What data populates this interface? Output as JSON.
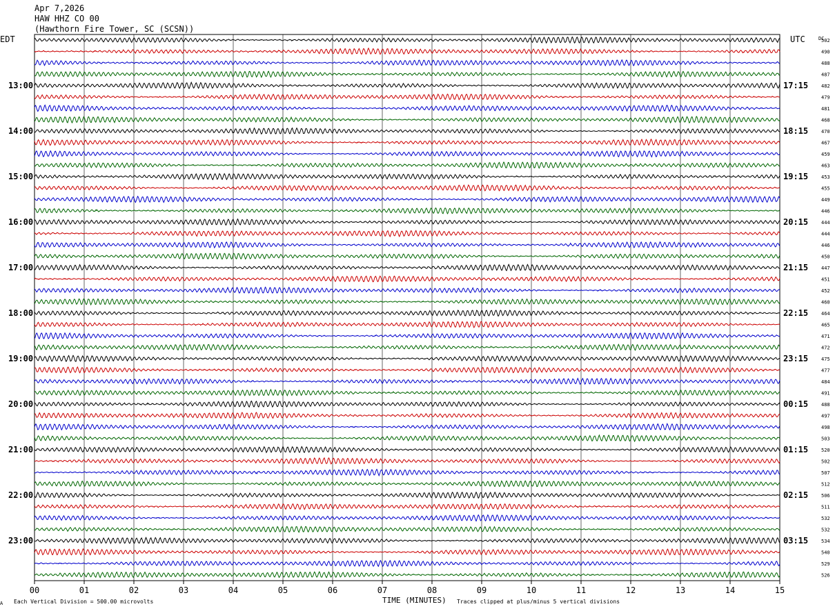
{
  "header": {
    "date": "Apr 7,2026",
    "station": "HAW HHZ CO 00",
    "location": "(Hawthorn Fire Tower, SC (SCSN))"
  },
  "left_label": "EDT",
  "right_label": "UTC",
  "dc_label": "DC",
  "footer": {
    "scale_marker": "A",
    "scale_text": "Each Vertical Division =  500.00 microvolts",
    "xlabel": "TIME (MINUTES)",
    "clip_text": "Traces clipped at plus/minus 5 vertical divisions"
  },
  "colors": {
    "trace_cycle": [
      "#000000",
      "#cc0000",
      "#0000cc",
      "#006600"
    ],
    "grid": "#000000",
    "background": "#ffffff"
  },
  "chart_data": {
    "type": "line",
    "title": "",
    "xlabel": "TIME (MINUTES)",
    "ylabel": "",
    "xlim": [
      0,
      15
    ],
    "x_ticks": [
      "00",
      "01",
      "02",
      "03",
      "04",
      "05",
      "06",
      "07",
      "08",
      "09",
      "10",
      "11",
      "12",
      "13",
      "14",
      "15"
    ],
    "traces_per_hour": 4,
    "trace_count": 48,
    "left_hour_labels": [
      {
        "trace_index": 4,
        "label": "13:00"
      },
      {
        "trace_index": 8,
        "label": "14:00"
      },
      {
        "trace_index": 12,
        "label": "15:00"
      },
      {
        "trace_index": 16,
        "label": "16:00"
      },
      {
        "trace_index": 20,
        "label": "17:00"
      },
      {
        "trace_index": 24,
        "label": "18:00"
      },
      {
        "trace_index": 28,
        "label": "19:00"
      },
      {
        "trace_index": 32,
        "label": "20:00"
      },
      {
        "trace_index": 36,
        "label": "21:00"
      },
      {
        "trace_index": 40,
        "label": "22:00"
      },
      {
        "trace_index": 44,
        "label": "23:00"
      }
    ],
    "right_hour_labels": [
      {
        "trace_index": 4,
        "label": "17:15"
      },
      {
        "trace_index": 8,
        "label": "18:15"
      },
      {
        "trace_index": 12,
        "label": "19:15"
      },
      {
        "trace_index": 16,
        "label": "20:15"
      },
      {
        "trace_index": 20,
        "label": "21:15"
      },
      {
        "trace_index": 24,
        "label": "22:15"
      },
      {
        "trace_index": 28,
        "label": "23:15"
      },
      {
        "trace_index": 32,
        "label": "00:15"
      },
      {
        "trace_index": 36,
        "label": "01:15"
      },
      {
        "trace_index": 40,
        "label": "02:15"
      },
      {
        "trace_index": 44,
        "label": "03:15"
      }
    ],
    "dc_offsets": [
      "502",
      "490",
      "488",
      "487",
      "482",
      "479",
      "481",
      "468",
      "470",
      "467",
      "459",
      "463",
      "453",
      "455",
      "449",
      "446",
      "444",
      "444",
      "446",
      "450",
      "447",
      "451",
      "452",
      "460",
      "464",
      "465",
      "471",
      "472",
      "475",
      "477",
      "484",
      "491",
      "488",
      "497",
      "498",
      "503",
      "520",
      "502",
      "507",
      "512",
      "506",
      "511",
      "532",
      "532",
      "534",
      "540",
      "529",
      "526"
    ]
  }
}
